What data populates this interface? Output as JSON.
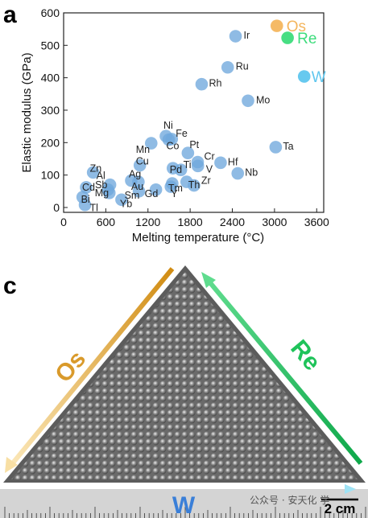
{
  "panels": {
    "a": "a",
    "c": "c"
  },
  "chart_data": {
    "type": "scatter",
    "xlabel": "Melting temperature (°C)",
    "ylabel": "Elastic modulus (GPa)",
    "xlim": [
      0,
      3700
    ],
    "ylim": [
      -15,
      600
    ],
    "xticks": [
      0,
      600,
      1200,
      1800,
      2400,
      3000,
      3600
    ],
    "yticks": [
      0,
      100,
      200,
      300,
      400,
      500,
      600
    ],
    "grid": false,
    "colors": {
      "default": "#6fa8dc",
      "Os": "#f4b65e",
      "Re": "#3ddc7c",
      "W": "#5fc6ee"
    },
    "points": [
      {
        "label": "Os",
        "x": 3033,
        "y": 560,
        "highlight": "Os"
      },
      {
        "label": "Re",
        "x": 3186,
        "y": 523,
        "highlight": "Re"
      },
      {
        "label": "W",
        "x": 3422,
        "y": 404,
        "highlight": "W"
      },
      {
        "label": "Ir",
        "x": 2446,
        "y": 528
      },
      {
        "label": "Ru",
        "x": 2334,
        "y": 432
      },
      {
        "label": "Rh",
        "x": 1964,
        "y": 380
      },
      {
        "label": "Mo",
        "x": 2623,
        "y": 329
      },
      {
        "label": "Ta",
        "x": 3017,
        "y": 186
      },
      {
        "label": "Ni",
        "x": 1455,
        "y": 220
      },
      {
        "label": "Fe",
        "x": 1538,
        "y": 211
      },
      {
        "label": "Co",
        "x": 1495,
        "y": 209
      },
      {
        "label": "Mn",
        "x": 1246,
        "y": 198
      },
      {
        "label": "Pt",
        "x": 1768,
        "y": 168
      },
      {
        "label": "Cr",
        "x": 1907,
        "y": 140
      },
      {
        "label": "Pd",
        "x": 1555,
        "y": 121
      },
      {
        "label": "V",
        "x": 1910,
        "y": 128
      },
      {
        "label": "Hf",
        "x": 2233,
        "y": 138
      },
      {
        "label": "Nb",
        "x": 2477,
        "y": 105
      },
      {
        "label": "Ti",
        "x": 1668,
        "y": 116
      },
      {
        "label": "Th",
        "x": 1750,
        "y": 79
      },
      {
        "label": "Zr",
        "x": 1855,
        "y": 68
      },
      {
        "label": "Tm",
        "x": 1545,
        "y": 74
      },
      {
        "label": "Y",
        "x": 1526,
        "y": 64
      },
      {
        "label": "Gd",
        "x": 1313,
        "y": 55
      },
      {
        "label": "Sm",
        "x": 1072,
        "y": 50
      },
      {
        "label": "Yb",
        "x": 824,
        "y": 24
      },
      {
        "label": "Cu",
        "x": 1085,
        "y": 130
      },
      {
        "label": "Ag",
        "x": 962,
        "y": 83
      },
      {
        "label": "Au",
        "x": 1064,
        "y": 79
      },
      {
        "label": "Al",
        "x": 660,
        "y": 70
      },
      {
        "label": "Mg",
        "x": 650,
        "y": 45
      },
      {
        "label": "Sb",
        "x": 631,
        "y": 55
      },
      {
        "label": "Zn",
        "x": 420,
        "y": 108
      },
      {
        "label": "Cd",
        "x": 321,
        "y": 62
      },
      {
        "label": "Bi",
        "x": 271,
        "y": 32
      },
      {
        "label": "Tl",
        "x": 304,
        "y": 8
      }
    ]
  },
  "photo": {
    "labels": {
      "left": "Os",
      "right": "Re",
      "bottom": "W"
    },
    "scale_bar": "2 cm",
    "watermark": "公众号 · 安天化 学",
    "colors": {
      "os": "#d99a2b",
      "re": "#1fc35a",
      "w": "#3a7fd8"
    }
  }
}
